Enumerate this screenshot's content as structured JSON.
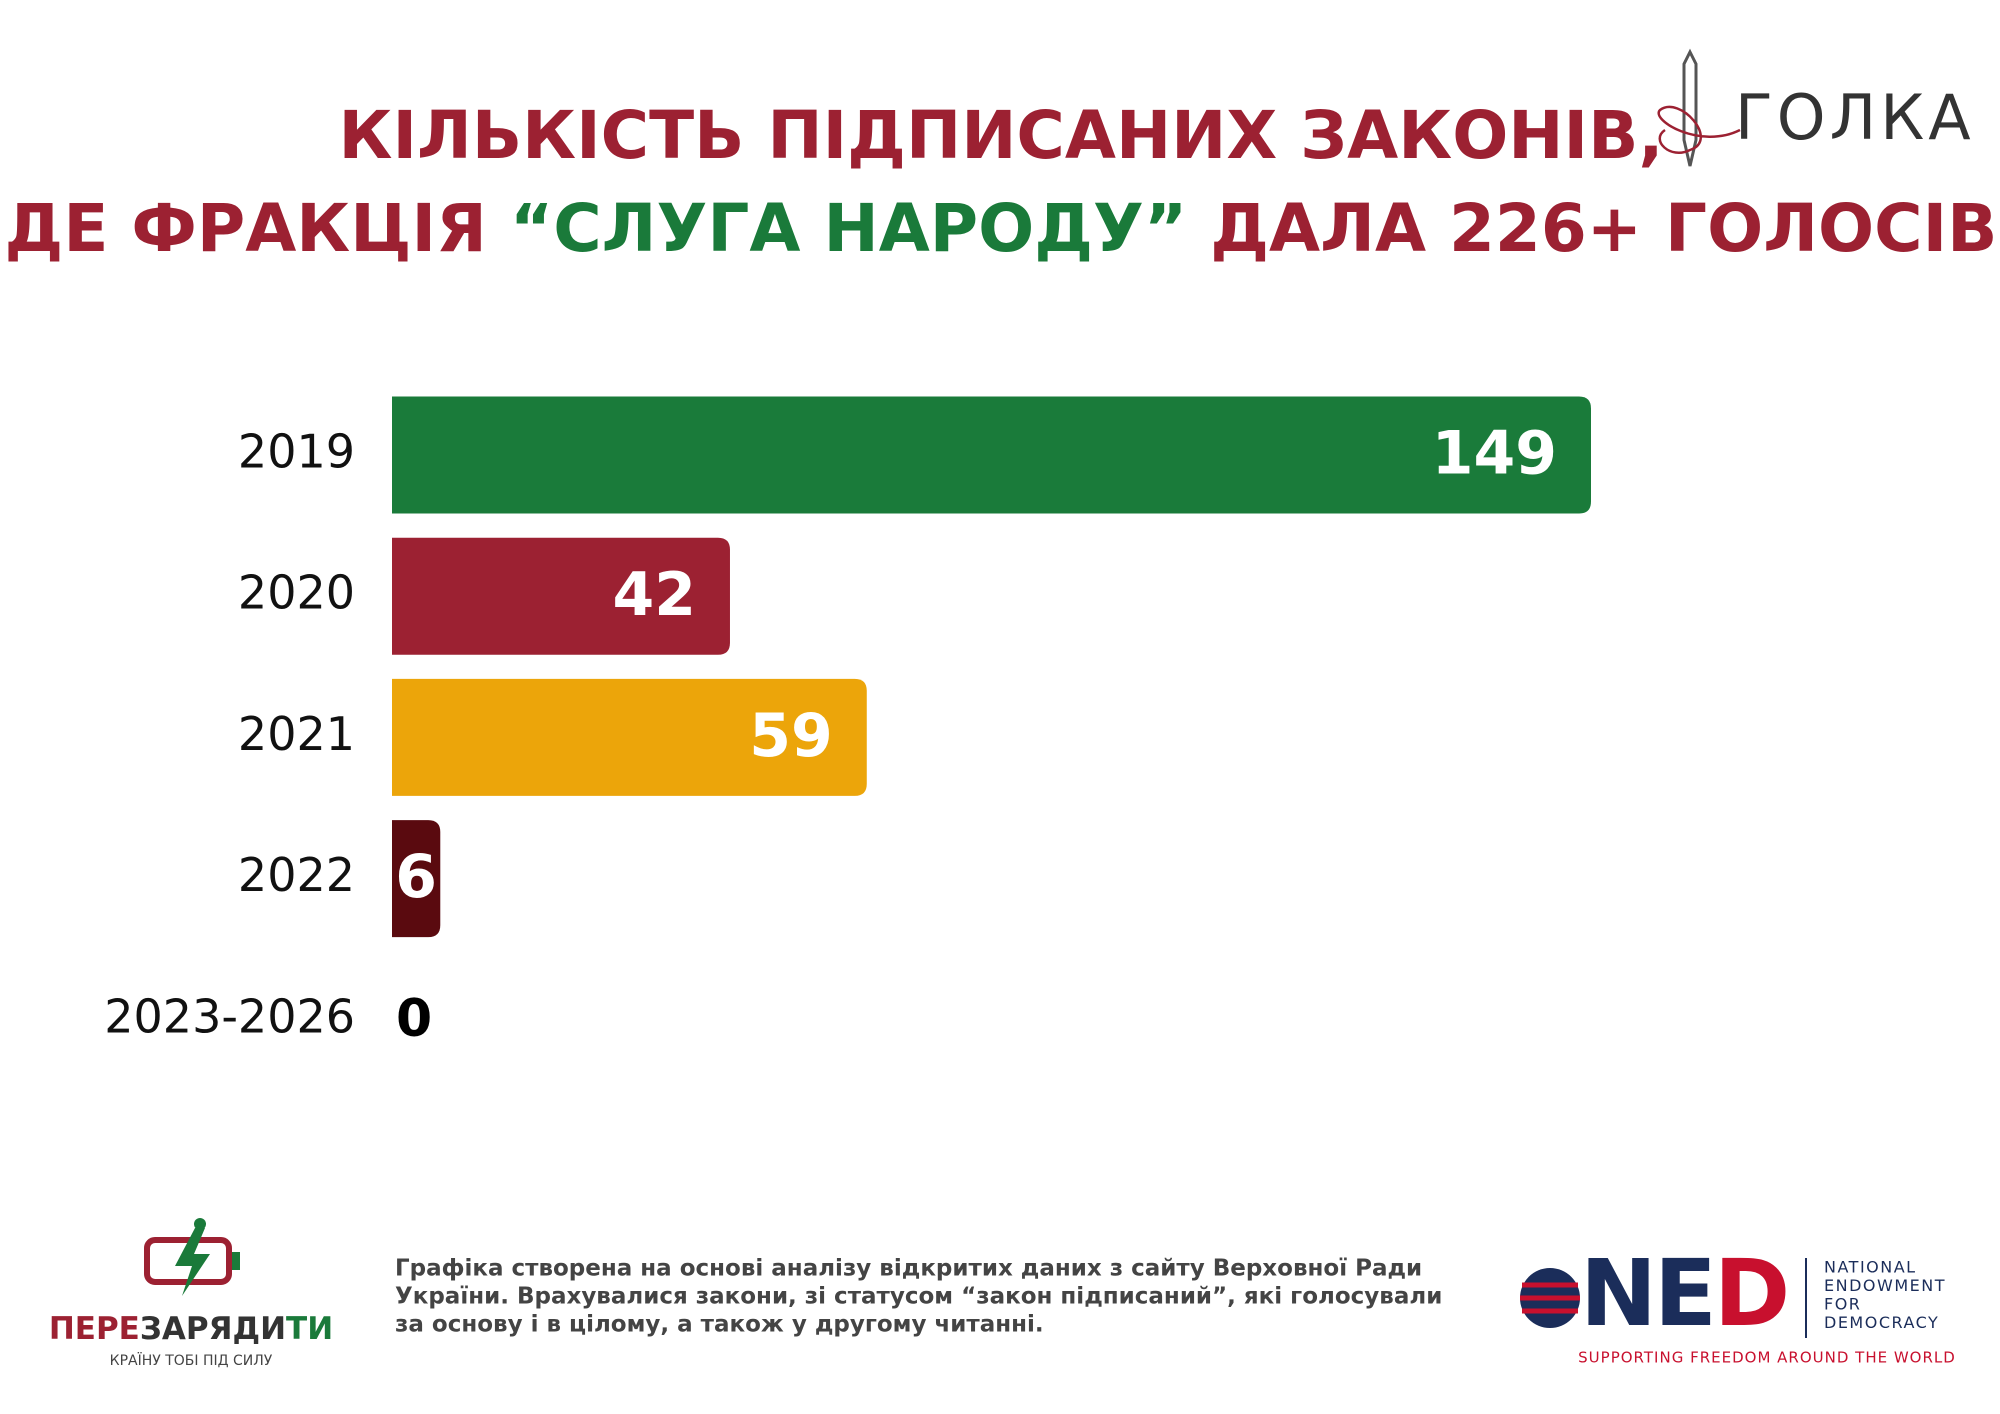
{
  "chart_data": {
    "type": "barh",
    "title_line1": "КІЛЬКІСТЬ ПІДПИСАНИХ ЗАКОНІВ,",
    "title_line2": [
      "ДЕ ФРАКЦІЯ ",
      "“СЛУГА НАРОДУ”",
      " ДАЛА 226+ ГОЛОСІВ"
    ],
    "title_colors": [
      "#9c2132",
      "#1a7a3a",
      "#9c2132"
    ],
    "categories": [
      "2019",
      "2020",
      "2021",
      "2022",
      "2023-2026"
    ],
    "values": [
      149,
      42,
      59,
      6,
      0
    ],
    "colors": [
      "#1a7b3a",
      "#9c2132",
      "#eca50a",
      "#5a0a0f",
      "#000000"
    ]
  },
  "header": {
    "logo": "ГОЛКА"
  },
  "footer": {
    "note": [
      "Графіка створена на основі аналізу відкритих даних з сайту Верховної Ради",
      "України. Врахувалися закони, зі статусом “закон підписаний”, які голосували",
      "за основу і в цілому, а також у другому читанні."
    ],
    "left_logo": [
      "ПЕРЕ",
      "ЗАРЯДИ",
      "ТИ"
    ],
    "left_tagline": "КРАЇНУ ТОБІ ПІД СИЛУ",
    "ned_logo": [
      "NE",
      "D"
    ],
    "ned_name": [
      "NATIONAL",
      "ENDOWMENT",
      "FOR",
      "DEMOCRACY"
    ],
    "ned_tagline": "SUPPORTING FREEDOM AROUND THE WORLD"
  }
}
